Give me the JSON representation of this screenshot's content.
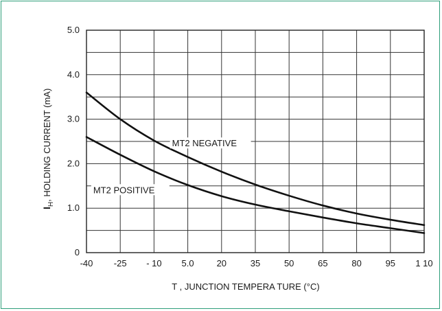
{
  "chart_data": {
    "type": "line",
    "title": "",
    "xlabel": "T , JUNCTION TEMPERA TURE (°C)",
    "ylabel_symbol": "I",
    "ylabel_sub": "H",
    "ylabel_rest": ", HOLDING CURRENT (mA)",
    "xlim": [
      -40,
      110
    ],
    "ylim": [
      0,
      5.0
    ],
    "x_ticks": [
      -40,
      -25,
      -10,
      5,
      20,
      35,
      50,
      65,
      80,
      95,
      110
    ],
    "x_tick_labels": [
      "-40",
      "-25",
      "- 10",
      "5.0",
      "20",
      "35",
      "50",
      "65",
      "80",
      "95",
      "1 10"
    ],
    "y_ticks": [
      0,
      1.0,
      2.0,
      3.0,
      4.0,
      5.0
    ],
    "y_tick_labels": [
      "0",
      "1.0",
      "2.0",
      "3.0",
      "4.0",
      "5.0"
    ],
    "grid": true,
    "series": [
      {
        "name": "MT2 NEGATIVE",
        "color": "#111111",
        "x": [
          -40,
          -25,
          -10,
          5,
          20,
          35,
          50,
          65,
          80,
          95,
          110
        ],
        "values": [
          3.6,
          3.0,
          2.52,
          2.15,
          1.82,
          1.53,
          1.28,
          1.06,
          0.88,
          0.74,
          0.62
        ]
      },
      {
        "name": "MT2 POSITIVE",
        "color": "#111111",
        "x": [
          -40,
          -25,
          -10,
          5,
          20,
          35,
          50,
          65,
          80,
          95,
          110
        ],
        "values": [
          2.6,
          2.2,
          1.83,
          1.52,
          1.27,
          1.08,
          0.93,
          0.79,
          0.66,
          0.55,
          0.44
        ]
      }
    ]
  }
}
